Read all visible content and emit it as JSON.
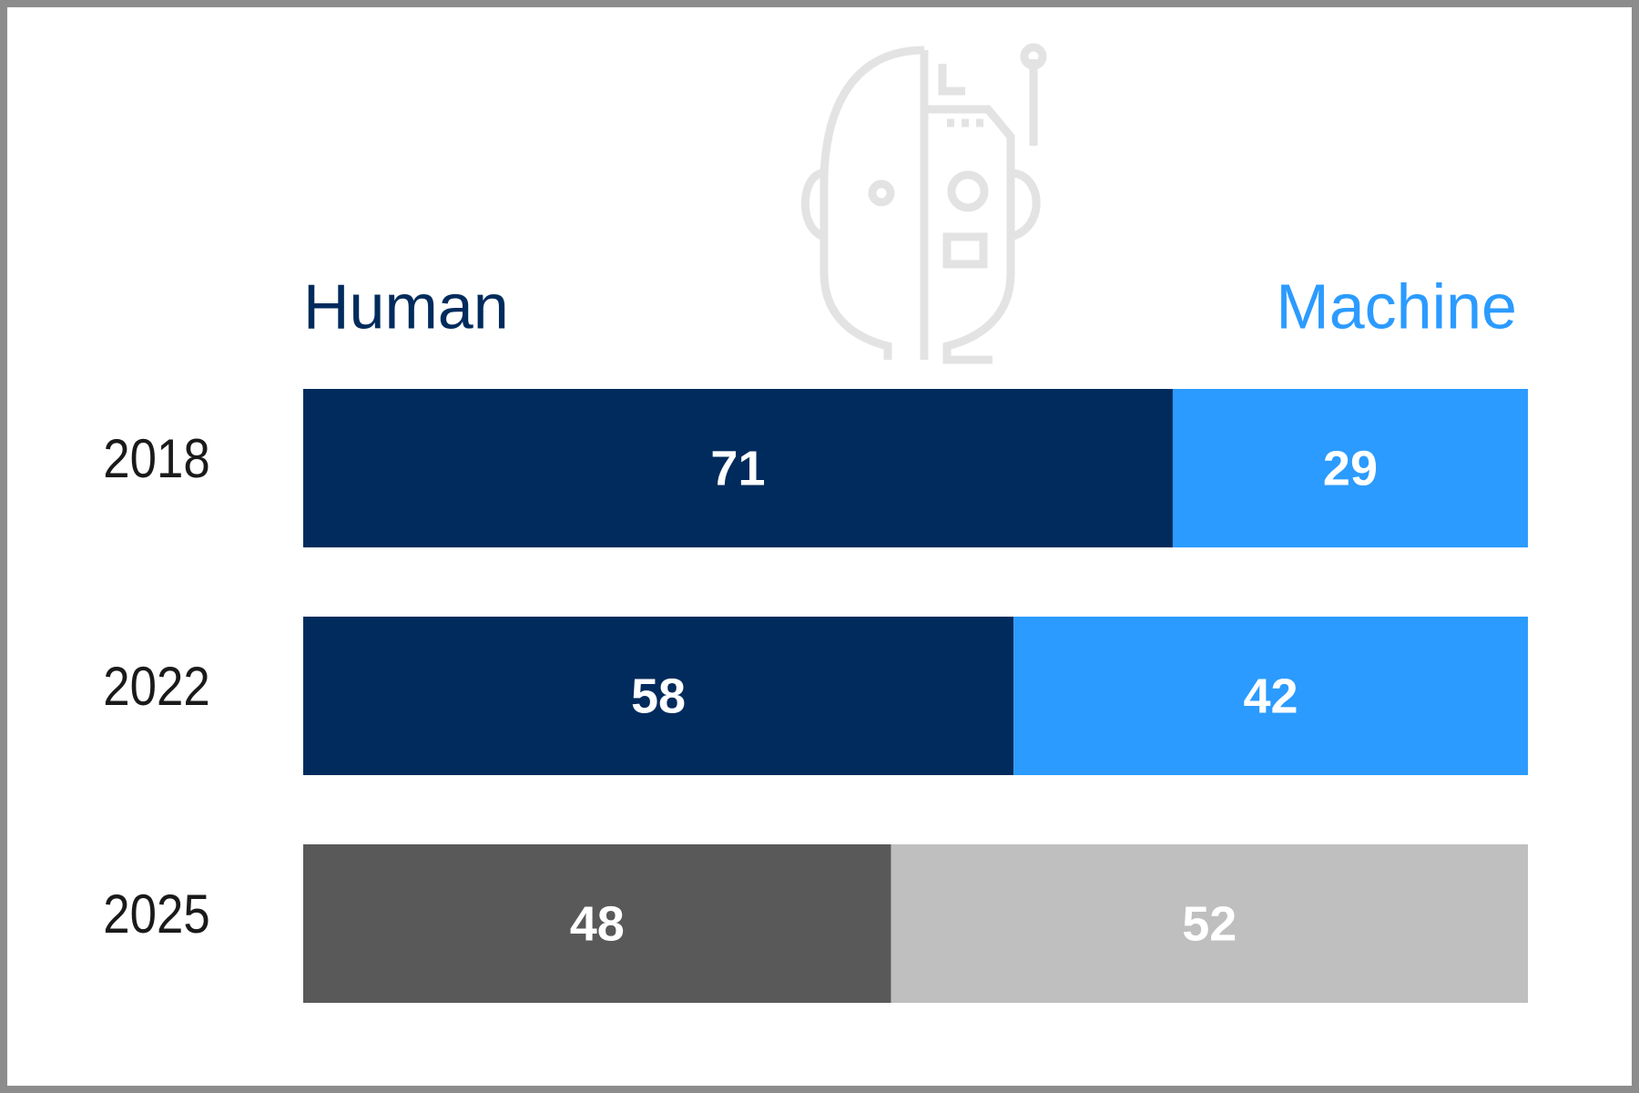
{
  "chart_data": {
    "type": "stacked_barh",
    "categories": [
      "2018",
      "2022",
      "2025"
    ],
    "series": [
      {
        "name": "Human",
        "color": "#002b5c",
        "colors": [
          "#002b5c",
          "#002b5c",
          "#595959"
        ],
        "values": [
          71,
          58,
          48
        ]
      },
      {
        "name": "Machine",
        "color": "#2b9bff",
        "colors": [
          "#2b9bff",
          "#2b9bff",
          "#bfbfbf"
        ],
        "values": [
          29,
          42,
          52
        ]
      }
    ],
    "xlim": [
      0,
      100
    ]
  }
}
